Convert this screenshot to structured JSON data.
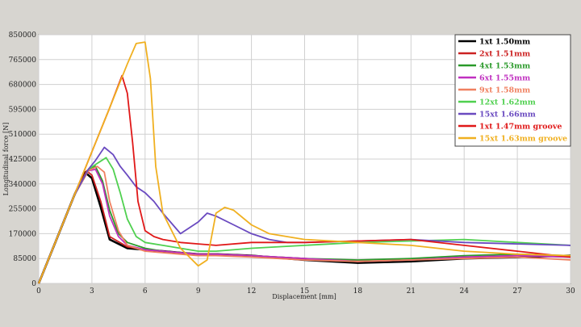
{
  "chart_data": {
    "type": "line",
    "xlabel": "Displacement [mm]",
    "ylabel": "Longitudinal force [N]",
    "xlim": [
      0,
      30
    ],
    "ylim": [
      0,
      850000
    ],
    "x_ticks": [
      "0",
      "3",
      "6",
      "9",
      "12",
      "15",
      "18",
      "21",
      "24",
      "27",
      "30"
    ],
    "y_ticks": [
      "0",
      "85000",
      "170000",
      "255000",
      "340000",
      "425000",
      "510000",
      "595000",
      "680000",
      "765000",
      "850000"
    ],
    "grid": true,
    "legend_position": "top-right",
    "background": "#d7d5d0",
    "series": [
      {
        "name": "1xt 1.50mm",
        "color": "#000000",
        "x": [
          0,
          1,
          2,
          2.6,
          3,
          3.5,
          4,
          5,
          6,
          7,
          8,
          9,
          10,
          12,
          15,
          18,
          21,
          24,
          27,
          30
        ],
        "y": [
          0,
          150000,
          300000,
          380000,
          360000,
          260000,
          150000,
          120000,
          115000,
          110000,
          105000,
          100000,
          100000,
          95000,
          80000,
          70000,
          75000,
          85000,
          90000,
          95000
        ]
      },
      {
        "name": "2xt 1.51mm",
        "color": "#cc2222",
        "x": [
          0,
          1,
          2,
          2.7,
          3,
          3.5,
          4,
          5,
          6,
          7,
          8,
          9,
          10,
          12,
          15,
          18,
          21,
          24,
          27,
          30
        ],
        "y": [
          0,
          150000,
          300000,
          385000,
          370000,
          280000,
          160000,
          125000,
          115000,
          110000,
          105000,
          100000,
          100000,
          95000,
          85000,
          75000,
          80000,
          90000,
          95000,
          90000
        ]
      },
      {
        "name": "4xt 1.53mm",
        "color": "#2a9a2a",
        "x": [
          0,
          1,
          2,
          2.8,
          3.2,
          3.6,
          4,
          4.5,
          5,
          6,
          7,
          8,
          9,
          10,
          12,
          15,
          18,
          21,
          24,
          27,
          30
        ],
        "y": [
          0,
          150000,
          300000,
          390000,
          400000,
          350000,
          250000,
          170000,
          140000,
          120000,
          110000,
          105000,
          100000,
          100000,
          95000,
          85000,
          80000,
          85000,
          95000,
          100000,
          95000
        ]
      },
      {
        "name": "6xt 1.55mm",
        "color": "#c030c0",
        "x": [
          0,
          1,
          2,
          2.8,
          3.2,
          3.6,
          4,
          4.5,
          5,
          6,
          7,
          8,
          9,
          10,
          12,
          15,
          18,
          21,
          24,
          27,
          30
        ],
        "y": [
          0,
          150000,
          300000,
          385000,
          390000,
          340000,
          230000,
          160000,
          130000,
          115000,
          110000,
          105000,
          100000,
          100000,
          95000,
          85000,
          75000,
          80000,
          90000,
          95000,
          90000
        ]
      },
      {
        "name": "9xt 1.58mm",
        "color": "#f08060",
        "x": [
          0,
          1,
          2,
          2.8,
          3.3,
          3.7,
          4,
          4.5,
          5,
          6,
          7,
          8,
          9,
          10,
          12,
          15,
          18,
          21,
          24,
          27,
          30
        ],
        "y": [
          0,
          150000,
          300000,
          385000,
          400000,
          380000,
          280000,
          180000,
          130000,
          110000,
          105000,
          100000,
          95000,
          95000,
          90000,
          80000,
          75000,
          80000,
          85000,
          90000,
          80000
        ]
      },
      {
        "name": "12xt 1.62mm",
        "color": "#4fd04f",
        "x": [
          0,
          1,
          2,
          2.8,
          3.3,
          3.8,
          4.2,
          4.6,
          5,
          5.5,
          6,
          7,
          8,
          9,
          10,
          12,
          15,
          18,
          21,
          24,
          27,
          30
        ],
        "y": [
          0,
          150000,
          300000,
          390000,
          410000,
          430000,
          390000,
          310000,
          220000,
          160000,
          140000,
          130000,
          120000,
          110000,
          110000,
          120000,
          130000,
          140000,
          145000,
          150000,
          140000,
          130000
        ]
      },
      {
        "name": "15xt 1.66mm",
        "color": "#6a4ac0",
        "x": [
          0,
          1,
          2,
          2.8,
          3.2,
          3.7,
          4.2,
          4.6,
          5,
          5.5,
          6,
          6.5,
          7,
          8,
          9,
          9.5,
          10,
          11,
          12,
          13,
          14,
          15,
          18,
          21,
          24,
          27,
          30
        ],
        "y": [
          0,
          150000,
          300000,
          390000,
          420000,
          465000,
          440000,
          400000,
          370000,
          330000,
          310000,
          280000,
          240000,
          170000,
          210000,
          240000,
          230000,
          200000,
          170000,
          150000,
          140000,
          140000,
          145000,
          150000,
          140000,
          135000,
          130000
        ]
      },
      {
        "name": "1xt 1.47mm groove",
        "color": "#e01818",
        "x": [
          0,
          1,
          2,
          3,
          4,
          4.7,
          5,
          5.3,
          5.6,
          6,
          6.5,
          7,
          8,
          9,
          10,
          12,
          15,
          18,
          21,
          24,
          27,
          30
        ],
        "y": [
          0,
          150000,
          300000,
          450000,
          600000,
          710000,
          650000,
          480000,
          280000,
          180000,
          160000,
          150000,
          140000,
          135000,
          130000,
          140000,
          140000,
          145000,
          150000,
          130000,
          110000,
          90000
        ]
      },
      {
        "name": "15xt 1.63mm groove",
        "color": "#f0b020",
        "x": [
          0,
          1,
          2,
          3,
          4,
          5,
          5.5,
          6,
          6.3,
          6.6,
          7,
          7.5,
          8,
          8.5,
          9,
          9.5,
          10,
          10.5,
          11,
          12,
          13,
          15,
          18,
          21,
          24,
          27,
          30
        ],
        "y": [
          0,
          150000,
          300000,
          450000,
          600000,
          750000,
          820000,
          825000,
          700000,
          400000,
          240000,
          180000,
          120000,
          90000,
          60000,
          80000,
          240000,
          260000,
          250000,
          200000,
          170000,
          150000,
          140000,
          130000,
          110000,
          100000,
          95000
        ]
      }
    ]
  }
}
